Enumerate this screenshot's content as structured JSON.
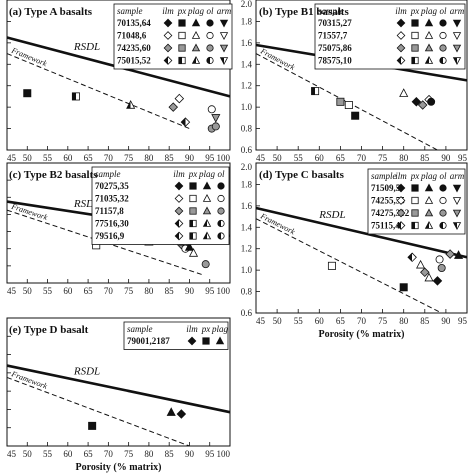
{
  "x_axis_label": "Porosity (% matrix)",
  "line_labels": {
    "rsdl": "RSDL",
    "framework": "Framework"
  },
  "legend_header": [
    "sample",
    "ilm",
    "px",
    "plag",
    "ol",
    "arm"
  ],
  "chart_data": [
    {
      "type": "scatter",
      "title": "(a) Type A basalts",
      "xlabel": "",
      "xlim": [
        45,
        100
      ],
      "xticks": [
        45,
        50,
        55,
        60,
        65,
        70,
        75,
        80,
        85,
        90,
        95,
        100
      ],
      "columns": [
        "ilm",
        "px",
        "plag",
        "ol",
        "arm"
      ],
      "samples": [
        {
          "name": "70135,64",
          "fill": "#111111"
        },
        {
          "name": "71048,6",
          "fill": "#ffffff"
        },
        {
          "name": "74235,60",
          "fill": "#999999"
        },
        {
          "name": "75015,52",
          "fill": "half"
        }
      ],
      "points": [
        {
          "x": 50,
          "y": 1.13,
          "shape": "square",
          "fill": "#111111"
        },
        {
          "x": 62,
          "y": 1.1,
          "shape": "square",
          "fill": "half"
        },
        {
          "x": 75.5,
          "y": 1.02,
          "shape": "triangle",
          "fill": "half"
        },
        {
          "x": 86,
          "y": 1.0,
          "shape": "diamond",
          "fill": "#999999"
        },
        {
          "x": 87.5,
          "y": 1.08,
          "shape": "diamond",
          "fill": "#ffffff"
        },
        {
          "x": 95.5,
          "y": 0.98,
          "shape": "circle",
          "fill": "#ffffff"
        },
        {
          "x": 96.5,
          "y": 0.9,
          "shape": "triangle-down",
          "fill": "#999999"
        },
        {
          "x": 89,
          "y": 0.86,
          "shape": "diamond",
          "fill": "half"
        },
        {
          "x": 95.5,
          "y": 0.8,
          "shape": "circle",
          "fill": "#999999"
        },
        {
          "x": 96.5,
          "y": 0.82,
          "shape": "circle",
          "fill": "#999999"
        }
      ]
    },
    {
      "type": "scatter",
      "title": "(b) Type B1 basalts",
      "xlabel": "",
      "xlim": [
        45,
        95
      ],
      "ylim": [
        0.6,
        2.0
      ],
      "xticks": [
        45,
        50,
        55,
        60,
        65,
        70,
        75,
        80,
        85,
        90,
        95
      ],
      "yticks": [
        "0.6",
        "0.8",
        "1.0",
        "1.2",
        "1.4",
        "1.6",
        "1.8",
        "2.0"
      ],
      "columns": [
        "ilm",
        "px",
        "plag",
        "ol",
        "arm"
      ],
      "samples": [
        {
          "name": "70315,27",
          "fill": "#111111"
        },
        {
          "name": "71557,7",
          "fill": "#ffffff"
        },
        {
          "name": "75075,86",
          "fill": "#999999"
        },
        {
          "name": "78575,10",
          "fill": "half"
        }
      ],
      "points": [
        {
          "x": 65,
          "y": 1.05,
          "shape": "square",
          "fill": "#999999"
        },
        {
          "x": 67,
          "y": 1.02,
          "shape": "square",
          "fill": "#ffffff"
        },
        {
          "x": 68.5,
          "y": 0.92,
          "shape": "square",
          "fill": "#111111"
        },
        {
          "x": 80,
          "y": 1.13,
          "shape": "triangle",
          "fill": "#ffffff"
        },
        {
          "x": 83,
          "y": 1.05,
          "shape": "diamond",
          "fill": "#111111"
        },
        {
          "x": 84.5,
          "y": 1.02,
          "shape": "diamond",
          "fill": "#999999"
        },
        {
          "x": 86,
          "y": 1.07,
          "shape": "diamond",
          "fill": "#ffffff"
        },
        {
          "x": 86.5,
          "y": 1.05,
          "shape": "circle",
          "fill": "#111111"
        },
        {
          "x": 59,
          "y": 1.15,
          "shape": "square",
          "fill": "half"
        }
      ]
    },
    {
      "type": "scatter",
      "title": "(c) Type B2 basalts",
      "xlabel": "",
      "xlim": [
        45,
        100
      ],
      "xticks": [
        45,
        50,
        55,
        60,
        65,
        70,
        75,
        80,
        85,
        90,
        95,
        100
      ],
      "columns": [
        "ilm",
        "px",
        "plag",
        "ol"
      ],
      "samples": [
        {
          "name": "70275,35",
          "fill": "#111111"
        },
        {
          "name": "71035,32",
          "fill": "#ffffff"
        },
        {
          "name": "71157,8",
          "fill": "#999999"
        },
        {
          "name": "77516,30",
          "fill": "half"
        },
        {
          "name": "79516,9",
          "fill": "half"
        }
      ],
      "points": [
        {
          "x": 67,
          "y": 1.04,
          "shape": "square",
          "fill": "#ffffff"
        },
        {
          "x": 80,
          "y": 1.08,
          "shape": "triangle",
          "fill": "#ffffff"
        },
        {
          "x": 86,
          "y": 1.1,
          "shape": "diamond",
          "fill": "#ffffff"
        },
        {
          "x": 88,
          "y": 1.05,
          "shape": "diamond",
          "fill": "#999999"
        },
        {
          "x": 89,
          "y": 1.0,
          "shape": "circle",
          "fill": "#ffffff"
        },
        {
          "x": 90,
          "y": 1.02,
          "shape": "triangle",
          "fill": "#111111"
        },
        {
          "x": 91,
          "y": 0.95,
          "shape": "triangle",
          "fill": "#ffffff"
        },
        {
          "x": 88.5,
          "y": 1.08,
          "shape": "triangle",
          "fill": "half"
        },
        {
          "x": 94,
          "y": 0.82,
          "shape": "circle",
          "fill": "#999999"
        }
      ]
    },
    {
      "type": "scatter",
      "title": "(d) Type C basalts",
      "xlabel": "Porosity (% matrix)",
      "xlim": [
        45,
        95
      ],
      "ylim": [
        0.6,
        2.0
      ],
      "xticks": [
        45,
        50,
        55,
        60,
        65,
        70,
        75,
        80,
        85,
        90,
        95
      ],
      "yticks": [
        "0.6",
        "0.8",
        "1.0",
        "1.2",
        "1.4",
        "1.6",
        "1.8",
        "2.0"
      ],
      "columns": [
        "ilm",
        "px",
        "plag",
        "ol",
        "arm"
      ],
      "samples": [
        {
          "name": "71509,5",
          "fill": "#111111"
        },
        {
          "name": "74255,55",
          "fill": "#ffffff"
        },
        {
          "name": "74275,312",
          "fill": "#999999"
        },
        {
          "name": "75115,4",
          "fill": "half"
        }
      ],
      "points": [
        {
          "x": 63,
          "y": 1.04,
          "shape": "square",
          "fill": "#ffffff"
        },
        {
          "x": 80,
          "y": 0.84,
          "shape": "square",
          "fill": "#111111"
        },
        {
          "x": 82,
          "y": 1.12,
          "shape": "diamond",
          "fill": "half"
        },
        {
          "x": 84,
          "y": 1.05,
          "shape": "triangle",
          "fill": "#ffffff"
        },
        {
          "x": 85,
          "y": 0.98,
          "shape": "diamond",
          "fill": "#999999"
        },
        {
          "x": 86,
          "y": 0.93,
          "shape": "triangle",
          "fill": "#ffffff"
        },
        {
          "x": 88,
          "y": 0.9,
          "shape": "diamond",
          "fill": "#111111"
        },
        {
          "x": 89,
          "y": 1.02,
          "shape": "circle",
          "fill": "#999999"
        },
        {
          "x": 91,
          "y": 1.15,
          "shape": "diamond",
          "fill": "#999999"
        },
        {
          "x": 93,
          "y": 1.14,
          "shape": "triangle",
          "fill": "#111111"
        },
        {
          "x": 88.5,
          "y": 1.1,
          "shape": "circle",
          "fill": "#ffffff"
        }
      ]
    },
    {
      "type": "scatter",
      "title": "(e) Type D basalt",
      "xlabel": "Porosity (% matrix)",
      "xlim": [
        45,
        100
      ],
      "xticks": [
        45,
        50,
        55,
        60,
        65,
        70,
        75,
        80,
        85,
        90,
        95,
        100
      ],
      "columns": [
        "ilm",
        "px",
        "plag"
      ],
      "samples": [
        {
          "name": "79001,2187",
          "fill": "#111111"
        }
      ],
      "points": [
        {
          "x": 66,
          "y": 0.82,
          "shape": "square",
          "fill": "#111111"
        },
        {
          "x": 85.5,
          "y": 0.97,
          "shape": "triangle",
          "fill": "#111111"
        },
        {
          "x": 88,
          "y": 0.95,
          "shape": "diamond",
          "fill": "#111111"
        }
      ]
    }
  ]
}
